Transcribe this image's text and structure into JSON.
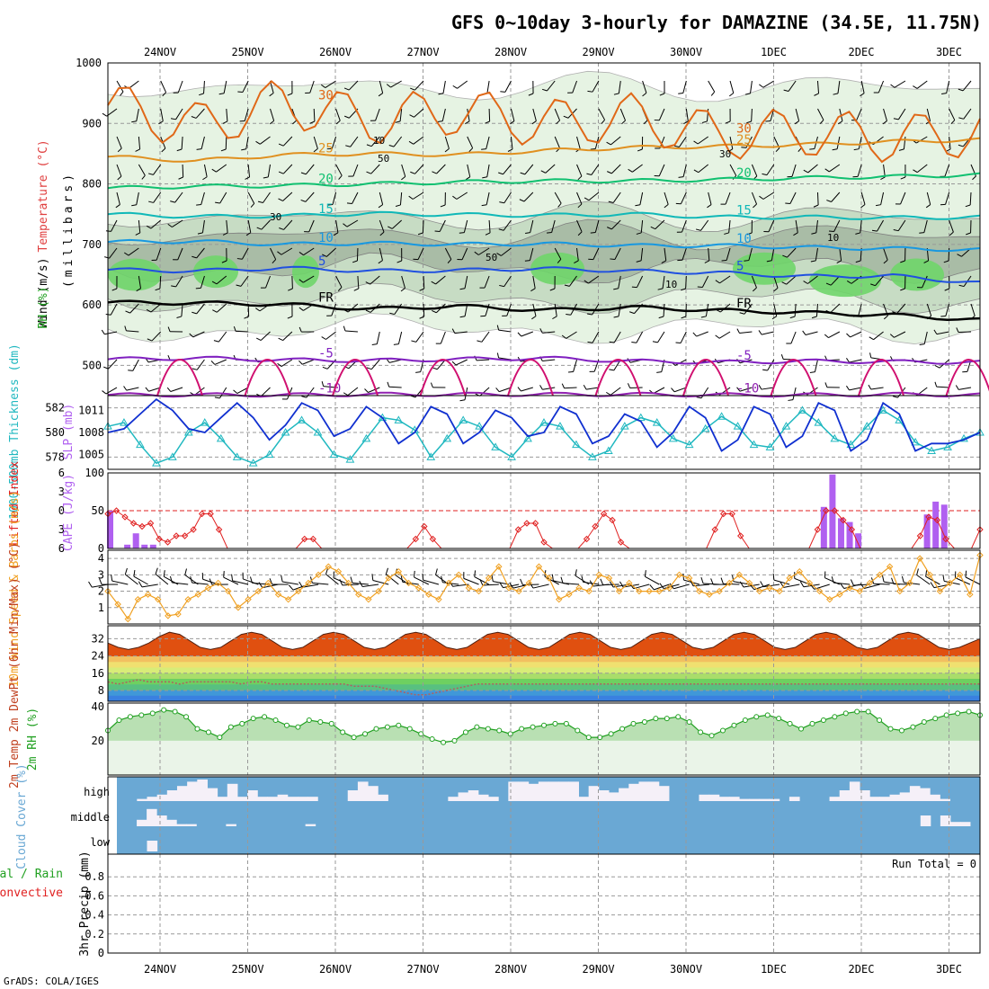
{
  "title": "GFS 0~10day 3-hourly for DAMAZINE (34.5E, 11.75N)",
  "credit": "GrADS: COLA/IGES",
  "dates": [
    "24NOV",
    "25NOV",
    "26NOV",
    "27NOV",
    "28NOV",
    "29NOV",
    "30NOV",
    "1DEC",
    "2DEC",
    "3DEC"
  ],
  "colors": {
    "rh_light": "#e6f3e3",
    "rh_mid": "#c7dcc4",
    "rh_dark": "#a9bca6",
    "rh_green": "#6fd56a",
    "slp": "#1030d0",
    "thickness": "#20b8c0",
    "cape": "#b060f0",
    "lifted_index": "#e02020",
    "wind_speed": "#f0a020",
    "temp_fill": "#e05010",
    "cloud": "#6aa8d4",
    "cloud_gap": "#f5f0f8",
    "rh2m_fill": "#a8d8a0",
    "rh2m_line": "#20a020"
  },
  "chart_data": [
    {
      "type": "contour",
      "panel": "upper_air",
      "ylabel": "(millibars)",
      "yaxis_labels": [
        "Wind (m/s)",
        "Temperature (°C)",
        "RH (%)"
      ],
      "ylim": [
        1000,
        450
      ],
      "yticks": [
        500,
        600,
        700,
        800,
        900,
        1000
      ],
      "temperature_contours_C": [
        {
          "label": "-10",
          "levels_mb": [
            451,
            451,
            451,
            452,
            452,
            452,
            452,
            451,
            451,
            452,
            451
          ]
        },
        {
          "label": "-5",
          "levels_mb": [
            510,
            512,
            509,
            508,
            510,
            512,
            507,
            505,
            507,
            506,
            505
          ]
        },
        {
          "label": "FR",
          "levels_mb": [
            604,
            603,
            601,
            593,
            598,
            591,
            596,
            591,
            587,
            583,
            575
          ]
        },
        {
          "label": "5",
          "levels_mb": [
            658,
            656,
            661,
            656,
            657,
            660,
            656,
            653,
            647,
            648,
            636
          ]
        },
        {
          "label": "10",
          "levels_mb": [
            704,
            705,
            700,
            702,
            700,
            701,
            698,
            698,
            695,
            693,
            691
          ]
        },
        {
          "label": "15",
          "levels_mb": [
            750,
            746,
            747,
            751,
            749,
            748,
            750,
            745,
            745,
            744,
            745
          ]
        },
        {
          "label": "20",
          "levels_mb": [
            793,
            796,
            797,
            800,
            803,
            805,
            805,
            807,
            810,
            812,
            815
          ]
        },
        {
          "label": "25",
          "levels_mb": [
            845,
            838,
            848,
            850,
            848,
            855,
            860,
            862,
            865,
            870,
            873
          ]
        },
        {
          "label": "30",
          "levels_mb": [
            930,
            895,
            935,
            905,
            920,
            900,
            910,
            880,
            885,
            875,
            885
          ]
        }
      ],
      "rh_contour_labels": [
        "10",
        "30",
        "50"
      ]
    },
    {
      "type": "line",
      "panel": "slp_thickness",
      "series": [
        {
          "name": "SLP (mb)",
          "ylim": [
            1003,
            1013
          ],
          "yticks": [
            1005,
            1008,
            1011
          ],
          "values": [
            1008.0,
            1008.5,
            1010.5,
            1012.5,
            1011.0,
            1008.5,
            1008.0,
            1010.0,
            1012.0,
            1010.0,
            1007.0,
            1009.0,
            1012.0,
            1011.0,
            1007.5,
            1008.5,
            1011.5,
            1010.0,
            1006.5,
            1008.0,
            1011.5,
            1010.5,
            1006.5,
            1008.0,
            1011.0,
            1010.0,
            1007.5,
            1008.0,
            1011.5,
            1010.5,
            1006.5,
            1007.5,
            1010.5,
            1009.5,
            1006.0,
            1008.0,
            1011.5,
            1010.0,
            1005.5,
            1007.0,
            1011.5,
            1010.5,
            1006.0,
            1007.5,
            1012.0,
            1011.0,
            1005.5,
            1007.0,
            1012.0,
            1010.5,
            1005.5,
            1006.5,
            1006.5,
            1007.0,
            1008.0
          ]
        },
        {
          "name": "1000-500mb Thickness (dm)",
          "ylim": [
            577,
            583
          ],
          "yticks": [
            578,
            580,
            582
          ],
          "values": [
            580.5,
            580.8,
            579.0,
            577.5,
            578.0,
            580.0,
            580.8,
            579.5,
            578.0,
            577.5,
            578.2,
            580.0,
            581.0,
            580.0,
            578.2,
            577.8,
            579.5,
            581.2,
            581.0,
            580.2,
            578.0,
            579.5,
            581.0,
            580.5,
            578.8,
            578.0,
            579.5,
            580.8,
            580.5,
            579.0,
            578.0,
            578.5,
            580.5,
            581.2,
            580.8,
            579.5,
            579.0,
            580.3,
            581.3,
            580.5,
            579.0,
            578.8,
            580.5,
            581.8,
            580.8,
            579.5,
            579.0,
            580.5,
            581.8,
            581.0,
            579.2,
            578.5,
            578.8,
            579.5,
            580.0
          ]
        }
      ]
    },
    {
      "type": "bar",
      "panel": "cape_lifted_index",
      "series": [
        {
          "name": "CAPE (J/kg)",
          "ylim": [
            0,
            100
          ],
          "yticks": [
            0,
            50,
            100
          ],
          "values": [
            50,
            0,
            5,
            20,
            5,
            5,
            0,
            0,
            0,
            0,
            0,
            0,
            0,
            0,
            0,
            0,
            0,
            0,
            0,
            0,
            0,
            0,
            0,
            0,
            0,
            0,
            0,
            0,
            0,
            0,
            0,
            0,
            0,
            0,
            0,
            0,
            0,
            0,
            0,
            0,
            0,
            0,
            0,
            0,
            0,
            0,
            0,
            0,
            0,
            0,
            0,
            0,
            0,
            0,
            0,
            0,
            0,
            0,
            0,
            0,
            0,
            0,
            0,
            0,
            0,
            0,
            0,
            0,
            0,
            0,
            0,
            0,
            0,
            0,
            0,
            0,
            0,
            0,
            0,
            0,
            0,
            0,
            0,
            55,
            98,
            40,
            35,
            20,
            0,
            0,
            0,
            0,
            0,
            0,
            0,
            45,
            62,
            58,
            0,
            0,
            0,
            0
          ]
        },
        {
          "name": "Lifted Index",
          "ylim": [
            6,
            -6
          ],
          "yticks": [
            -6,
            -3,
            0,
            3,
            6
          ],
          "values": [
            0.5,
            0,
            1,
            2,
            2.5,
            2,
            4.5,
            5,
            4,
            4,
            3,
            0.5,
            0.5,
            3,
            6,
            6,
            6,
            6,
            6,
            6,
            6,
            6,
            6,
            4.5,
            4.5,
            6,
            6,
            6,
            6,
            6,
            6,
            6,
            6,
            6,
            6,
            6,
            4.5,
            2.5,
            4.5,
            6,
            6,
            6,
            6,
            6,
            6,
            6,
            6,
            6,
            3,
            2,
            2,
            5,
            6,
            6,
            6,
            6,
            4.5,
            2.5,
            0.5,
            1.5,
            5,
            6,
            6,
            6,
            6,
            6,
            6,
            6,
            6,
            6,
            6,
            3,
            0.5,
            0.5,
            4,
            6,
            6,
            6,
            6,
            6,
            6,
            6,
            6,
            3,
            0,
            0,
            1.5,
            3,
            6,
            6,
            6,
            6,
            6,
            6,
            6,
            4,
            1,
            1.5,
            4.5,
            6,
            6,
            6,
            3
          ]
        }
      ]
    },
    {
      "type": "line",
      "panel": "wind10m",
      "ylabel": "10m Wind Speed & Barbs (m/s)",
      "ylim": [
        0,
        4.5
      ],
      "yticks": [
        1,
        2,
        3,
        4
      ],
      "values": [
        2.0,
        1.2,
        0.3,
        1.5,
        1.8,
        1.5,
        0.5,
        0.6,
        1.5,
        1.8,
        2.2,
        2.5,
        2.0,
        1.0,
        1.5,
        2.0,
        2.5,
        1.8,
        1.5,
        2.0,
        2.5,
        3.0,
        3.5,
        3.2,
        2.5,
        1.8,
        1.5,
        2.0,
        2.8,
        3.2,
        2.5,
        2.2,
        1.8,
        1.5,
        2.5,
        3.0,
        2.2,
        2.0,
        2.8,
        3.5,
        2.2,
        2.0,
        2.5,
        3.5,
        2.8,
        1.5,
        1.8,
        2.2,
        2.0,
        3.0,
        2.8,
        2.0,
        2.5,
        2.0,
        2.0,
        2.0,
        2.2,
        3.0,
        2.8,
        2.0,
        1.8,
        2.0,
        2.5,
        3.0,
        2.5,
        2.0,
        2.2,
        2.0,
        2.8,
        3.2,
        2.5,
        2.0,
        1.5,
        1.8,
        2.2,
        2.0,
        2.5,
        3.0,
        3.5,
        2.0,
        2.5,
        4.0,
        3.0,
        2.0,
        2.5,
        3.0,
        1.8,
        4.2
      ]
    },
    {
      "type": "area",
      "panel": "temp_dewpoint",
      "ylabel": "2m Temp 2m DewPt (6hr Min/Max) (°C)",
      "ylim": [
        3,
        38
      ],
      "yticks": [
        8,
        16,
        24,
        32
      ],
      "temp_values": [
        30,
        28,
        27,
        28,
        30,
        33,
        35,
        34,
        31,
        28,
        27,
        28,
        31,
        34,
        35,
        34,
        31,
        28,
        27,
        28,
        31,
        34,
        35,
        34,
        31,
        28,
        27,
        28,
        31,
        34,
        35,
        34,
        31,
        28,
        27,
        28,
        31,
        34,
        35,
        34,
        31,
        28,
        27,
        28,
        31,
        34,
        35,
        34,
        31,
        28,
        27,
        28,
        31,
        34,
        35,
        34,
        31,
        28,
        27,
        28,
        31,
        34,
        35,
        34,
        31,
        28,
        27,
        28,
        31,
        34,
        35,
        34,
        31,
        28,
        27,
        28,
        31,
        34,
        35,
        34,
        31,
        28,
        27,
        28,
        30,
        32
      ],
      "dewpoint_values": [
        12,
        11,
        12,
        13,
        12,
        12,
        12,
        11,
        12,
        12,
        12,
        12,
        12,
        11,
        12,
        12,
        11,
        11,
        11,
        11,
        11,
        11,
        11,
        11,
        10,
        10,
        10,
        9,
        8,
        7,
        6,
        6,
        7,
        8,
        9,
        10,
        11,
        11,
        11,
        11,
        11,
        11,
        11,
        11,
        11,
        11,
        11,
        11,
        11,
        11,
        11,
        11,
        11,
        11,
        11,
        11,
        11,
        11,
        11,
        11,
        11,
        11,
        11,
        11,
        11,
        11,
        11,
        11,
        11,
        11,
        11,
        11,
        11,
        11,
        11,
        11,
        11,
        11,
        11,
        11,
        11,
        11,
        11,
        11,
        11,
        11
      ],
      "band_colors": [
        "#f2c060",
        "#f0e070",
        "#d8ec78",
        "#aadd6a",
        "#6ed060",
        "#58c080",
        "#4098d8",
        "#3a80e0"
      ]
    },
    {
      "type": "area",
      "panel": "rh2m",
      "ylabel": "2m RH (%)",
      "ylim": [
        0,
        42
      ],
      "yticks": [
        20,
        40
      ],
      "values": [
        26,
        32,
        34,
        35,
        36,
        38,
        37,
        34,
        27,
        25,
        22,
        28,
        30,
        33,
        34,
        32,
        29,
        28,
        32,
        31,
        30,
        25,
        22,
        24,
        27,
        28,
        29,
        27,
        24,
        21,
        19,
        20,
        25,
        28,
        27,
        26,
        24,
        27,
        28,
        29,
        30,
        30,
        26,
        22,
        22,
        24,
        27,
        30,
        31,
        33,
        33,
        34,
        31,
        25,
        23,
        26,
        29,
        32,
        34,
        35,
        33,
        30,
        27,
        30,
        32,
        34,
        36,
        37,
        37,
        32,
        27,
        26,
        28,
        31,
        33,
        35,
        36,
        37,
        35
      ]
    },
    {
      "type": "bar",
      "panel": "cloud_cover",
      "ylabel": "Cloud Cover (%)",
      "rows": [
        "high",
        "middle",
        "low"
      ],
      "high_values": [
        0,
        0,
        1,
        2,
        3,
        5,
        7,
        9,
        10,
        6,
        2,
        8,
        2,
        5,
        2,
        2,
        3,
        2,
        2,
        2,
        0,
        0,
        0,
        5,
        9,
        7,
        3,
        0,
        0,
        0,
        0,
        0,
        0,
        2,
        4,
        5,
        3,
        2,
        0,
        9,
        9,
        8,
        9,
        9,
        9,
        9,
        2,
        7,
        5,
        4,
        6,
        8,
        9,
        9,
        7,
        0,
        0,
        0,
        3,
        3,
        2,
        2,
        1,
        1,
        1,
        1,
        0,
        2,
        0,
        0,
        0,
        2,
        5,
        9,
        5,
        2,
        2,
        3,
        4,
        7,
        6,
        3,
        1,
        0,
        0,
        0
      ],
      "middle_values": [
        0,
        0,
        3,
        8,
        5,
        3,
        1,
        1,
        0,
        0,
        0,
        1,
        0,
        0,
        0,
        0,
        0,
        0,
        0,
        1,
        0,
        0,
        0,
        0,
        0,
        0,
        0,
        0,
        0,
        0,
        0,
        0,
        0,
        0,
        0,
        0,
        0,
        0,
        0,
        0,
        0,
        0,
        0,
        0,
        0,
        0,
        0,
        0,
        0,
        0,
        0,
        0,
        0,
        0,
        0,
        0,
        0,
        0,
        0,
        0,
        0,
        0,
        0,
        0,
        0,
        0,
        0,
        0,
        0,
        0,
        0,
        0,
        0,
        0,
        0,
        0,
        0,
        0,
        0,
        0,
        0,
        5,
        0,
        5,
        2,
        2,
        0
      ],
      "low_values": [
        0,
        0,
        0,
        5,
        0,
        0,
        0,
        0,
        0,
        0,
        0,
        0,
        0,
        0,
        0,
        0,
        0,
        0,
        0,
        0,
        0,
        0,
        0,
        0,
        0,
        0,
        0,
        0,
        0,
        0,
        0,
        0,
        0,
        0,
        0,
        0,
        0,
        0,
        0,
        0,
        0,
        0,
        0,
        0,
        0,
        0,
        0,
        0,
        0,
        0,
        0,
        0,
        0,
        0,
        0,
        0,
        0,
        0,
        0,
        0,
        0,
        0,
        0,
        0,
        0,
        0,
        0,
        0,
        0,
        0,
        0,
        0,
        0,
        0,
        0,
        0,
        0,
        0,
        0,
        0,
        0,
        0,
        0,
        0,
        0,
        0
      ]
    },
    {
      "type": "bar",
      "panel": "precip",
      "ylabel": "3hr Precip (mm)",
      "side_labels": [
        "Total / Rain",
        "Convective"
      ],
      "ylim": [
        0,
        1
      ],
      "yticks": [
        0,
        0.2,
        0.4,
        0.6,
        0.8
      ],
      "run_total_label": "Run Total = 0",
      "values": []
    }
  ]
}
